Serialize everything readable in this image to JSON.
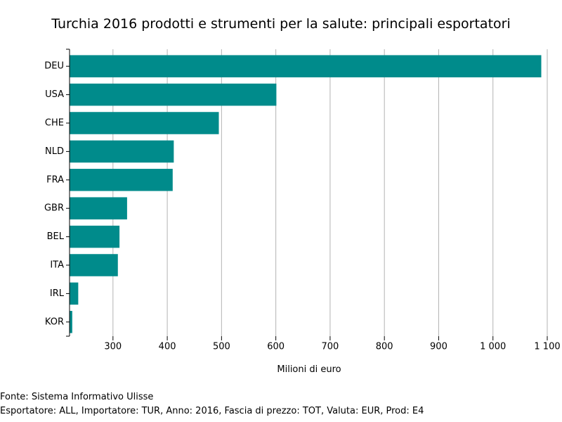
{
  "chart_data": {
    "type": "bar",
    "orientation": "horizontal",
    "title": "Turchia 2016 prodotti e strumenti per la salute: principali esportatori",
    "xlabel": "Milioni di euro",
    "ylabel": "",
    "categories": [
      "DEU",
      "USA",
      "CHE",
      "NLD",
      "FRA",
      "GBR",
      "BEL",
      "ITA",
      "IRL",
      "KOR"
    ],
    "values": [
      1089,
      601,
      495,
      412,
      410,
      326,
      312,
      309,
      236,
      225
    ],
    "xlim": [
      220,
      1100
    ],
    "xticks": [
      300,
      400,
      500,
      600,
      700,
      800,
      900,
      1000,
      1100
    ],
    "xtick_labels": [
      "300",
      "400",
      "500",
      "600",
      "700",
      "800",
      "900",
      "1 000",
      "1 100"
    ],
    "grid": "vertical",
    "bar_color": "#008b8b"
  },
  "footer": {
    "source": "Fonte: Sistema Informativo Ulisse",
    "details": "Esportatore: ALL, Importatore: TUR, Anno: 2016, Fascia di prezzo: TOT, Valuta: EUR, Prod: E4"
  }
}
